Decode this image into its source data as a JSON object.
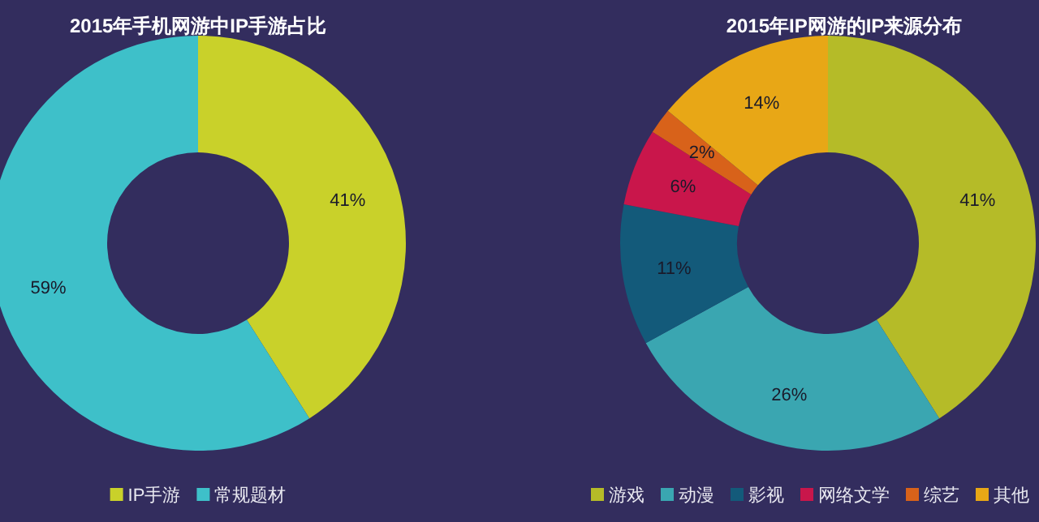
{
  "chart_data": [
    {
      "type": "donut",
      "title": "2015年手机网游中IP手游占比",
      "categories": [
        "IP手游",
        "常规题材"
      ],
      "values": [
        41,
        59
      ],
      "value_labels": [
        "41%",
        "59%"
      ],
      "colors": [
        "#c9d12a",
        "#3ec0c9"
      ],
      "legend": "bottom"
    },
    {
      "type": "donut",
      "title": "2015年IP网游的IP来源分布",
      "categories": [
        "游戏",
        "动漫",
        "影视",
        "网络文学",
        "综艺",
        "其他"
      ],
      "values": [
        41,
        26,
        11,
        6,
        2,
        14
      ],
      "value_labels": [
        "41%",
        "26%",
        "11%",
        "6%",
        "2%",
        "14%"
      ],
      "colors": [
        "#b5bb28",
        "#3aa6b1",
        "#135a7a",
        "#c9164b",
        "#d8621a",
        "#e8a716"
      ],
      "legend": "bottom"
    }
  ]
}
